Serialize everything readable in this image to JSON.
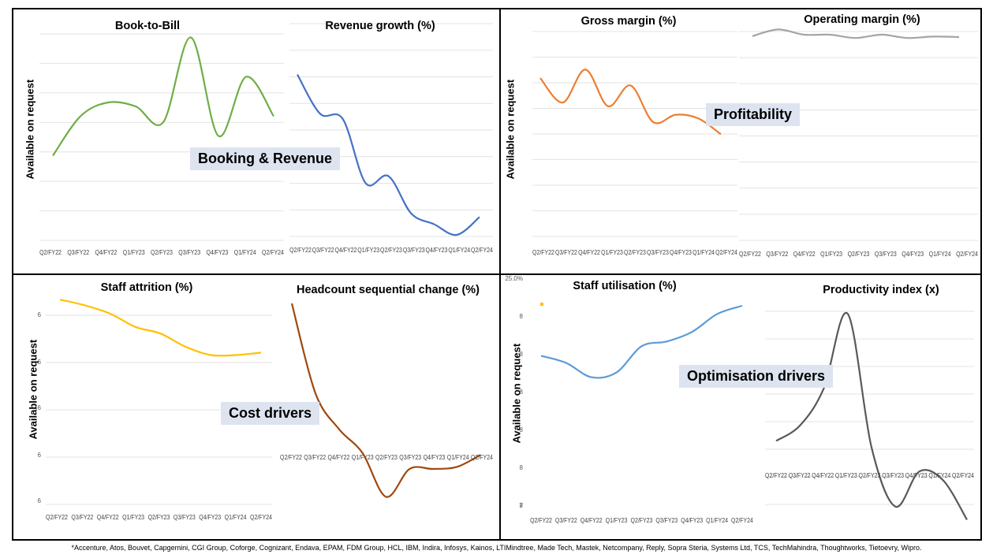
{
  "quadrant_labels": {
    "booking_revenue": "Booking & Revenue",
    "profitability": "Profitability",
    "cost_drivers": "Cost drivers",
    "optimisation_drivers": "Optimisation drivers"
  },
  "y_axis_title": "Available on request",
  "footnote": "*Accenture, Atos, Bouvet, Capgemini, CGI Group, Coforge, Cognizant, Endava, EPAM, FDM Group, HCL, IBM, Indira, Infosys, Kainos, LTIMindtree, Made Tech, Mastek, Netcompany, Reply, Sopra Steria, Systems Ltd, TCS, TechMahindra, Thoughtworks, Tietoevry, Wipro.",
  "colors": {
    "green": "#70ad47",
    "blue": "#4472c4",
    "orange": "#ed7d31",
    "gray": "#a5a5a5",
    "yellow": "#ffc000",
    "brown": "#9e480e",
    "lightblue": "#5b9bd5",
    "darkgray": "#595959"
  },
  "chart_data": [
    {
      "id": "book_to_bill",
      "type": "line",
      "title": "Book-to-Bill",
      "color": "green",
      "categories": [
        "Q2/FY22",
        "Q3/FY22",
        "Q4/FY22",
        "Q1/FY23",
        "Q2/FY23",
        "Q3/FY23",
        "Q4/FY23",
        "Q1/FY24",
        "Q2/FY24"
      ],
      "values": [
        35,
        55,
        62,
        60,
        52,
        95,
        45,
        75,
        55
      ],
      "ylim": [
        0,
        100
      ],
      "yticks": [],
      "grid": true
    },
    {
      "id": "revenue_growth",
      "type": "line",
      "title": "Revenue growth (%)",
      "color": "blue",
      "categories": [
        "Q2/FY22",
        "Q3/FY22",
        "Q4/FY22",
        "Q1/FY23",
        "Q2/FY23",
        "Q3/FY23",
        "Q4/FY23",
        "Q1/FY24",
        "Q2/FY24"
      ],
      "values": [
        90,
        68,
        65,
        29,
        33,
        12,
        6,
        0,
        10
      ],
      "ylim": [
        0,
        100
      ],
      "yticks": [],
      "grid": true
    },
    {
      "id": "gross_margin",
      "type": "line",
      "title": "Gross margin (%)",
      "color": "orange",
      "categories": [
        "Q2/FY22",
        "Q3/FY22",
        "Q4/FY22",
        "Q1/FY23",
        "Q2/FY23",
        "Q3/FY23",
        "Q4/FY23",
        "Q1/FY24",
        "Q2/FY24"
      ],
      "values": [
        78,
        58,
        85,
        55,
        72,
        42,
        48,
        45,
        32
      ],
      "ylim": [
        0,
        100
      ],
      "yticks": [],
      "grid": true
    },
    {
      "id": "operating_margin",
      "type": "line",
      "title": "Operating margin (%)",
      "color": "gray",
      "categories": [
        "Q2/FY22",
        "Q3/FY22",
        "Q4/FY22",
        "Q1/FY23",
        "Q2/FY23",
        "Q3/FY23",
        "Q4/FY23",
        "Q1/FY24",
        "Q2/FY24"
      ],
      "values": [
        82,
        96,
        85,
        85,
        78,
        85,
        78,
        81,
        80
      ],
      "ylim": [
        0,
        100
      ],
      "yticks": [],
      "grid": true
    },
    {
      "id": "staff_attrition",
      "type": "line",
      "title": "Staff attrition (%)",
      "color": "yellow",
      "categories": [
        "Q2/FY22",
        "Q3/FY22",
        "Q4/FY22",
        "Q1/FY23",
        "Q2/FY23",
        "Q3/FY23",
        "Q4/FY23",
        "Q1/FY24",
        "Q2/FY24"
      ],
      "values": [
        97,
        90,
        80,
        64,
        56,
        40,
        30,
        30,
        33
      ],
      "ylim": [
        0,
        100
      ],
      "yticks": [
        "6",
        "6",
        "6",
        "6",
        "6"
      ],
      "grid": true
    },
    {
      "id": "headcount_change",
      "type": "line",
      "title": "Headcount sequential change (%)",
      "color": "brown",
      "categories": [
        "Q2/FY22",
        "Q3/FY22",
        "Q4/FY22",
        "Q1/FY23",
        "Q2/FY23",
        "Q3/FY23",
        "Q4/FY23",
        "Q1/FY24",
        "Q2/FY24"
      ],
      "values": [
        100,
        55,
        37,
        25,
        3,
        17,
        17,
        18,
        24
      ],
      "ylim": [
        0,
        100
      ],
      "yticks": [],
      "grid": false
    },
    {
      "id": "staff_utilisation",
      "type": "line",
      "title": "Staff utilisation (%)",
      "color": "lightblue",
      "categories": [
        "Q2/FY22",
        "Q3/FY22",
        "Q4/FY22",
        "Q1/FY23",
        "Q2/FY23",
        "Q3/FY23",
        "Q4/FY23",
        "Q1/FY24",
        "Q2/FY24"
      ],
      "values": [
        58,
        52,
        40,
        44,
        66,
        70,
        78,
        93,
        100
      ],
      "ylim": [
        0,
        100
      ],
      "yticks": [
        "25.0%",
        "8",
        "8",
        "8",
        "8",
        "8",
        "8",
        "7"
      ],
      "grid": false
    },
    {
      "id": "productivity_index",
      "type": "line",
      "title": "Productivity index (x)",
      "color": "darkgray",
      "categories": [
        "Q2/FY22",
        "Q3/FY22",
        "Q4/FY22",
        "Q1/FY23",
        "Q2/FY23",
        "Q3/FY23",
        "Q4/FY23",
        "Q1/FY24",
        "Q2/FY24"
      ],
      "values": [
        38,
        45,
        62,
        96,
        35,
        8,
        24,
        20,
        2
      ],
      "ylim": [
        0,
        100
      ],
      "yticks": [],
      "grid": true
    }
  ]
}
